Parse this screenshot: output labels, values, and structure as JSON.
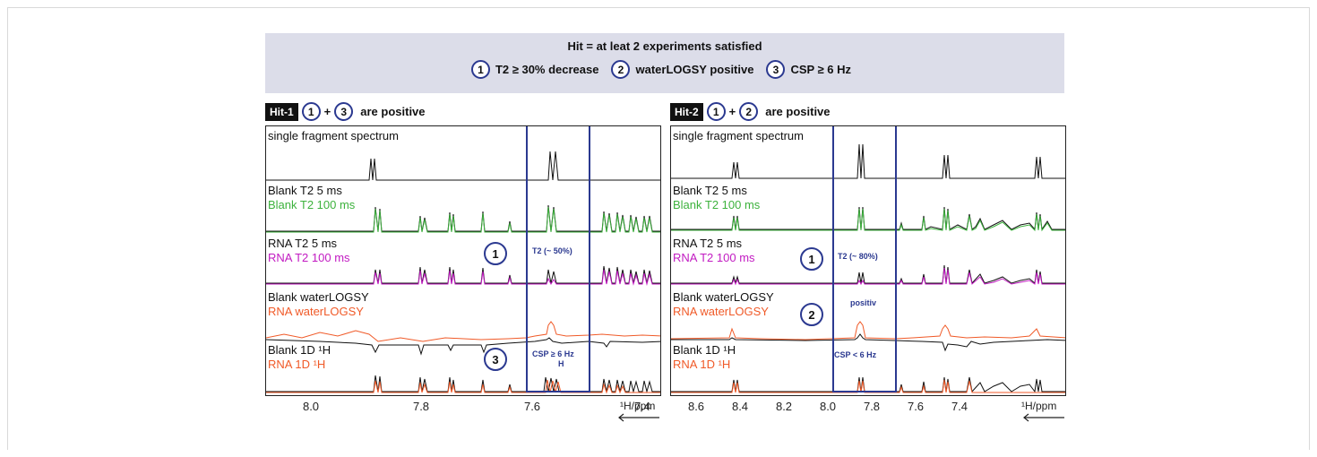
{
  "banner": {
    "title": "Hit = at leat 2 experiments satisfied",
    "criteria": [
      {
        "num": "1",
        "label": "T2 ≥ 30% decrease"
      },
      {
        "num": "2",
        "label": "waterLOGSY positive"
      },
      {
        "num": "3",
        "label": "CSP ≥ 6 Hz"
      }
    ]
  },
  "hit1": {
    "badge": "Hit-1",
    "n1": "1",
    "plus": "+",
    "n2": "3",
    "suffix": "are positive",
    "labels": {
      "single": "single fragment spectrum",
      "blank_t2_5": "Blank T2 5 ms",
      "blank_t2_100": "Blank T2 100 ms",
      "rna_t2_5": "RNA T2 5 ms",
      "rna_t2_100": "RNA T2 100 ms",
      "blank_wl": "Blank waterLOGSY",
      "rna_wl": "RNA waterLOGSY",
      "blank_1d": "Blank 1D ¹H",
      "rna_1d": "RNA 1D ¹H"
    },
    "annot_t2": "T2 (~ 50%)",
    "annot_csp": "CSP ≥ 6 Hz",
    "annot_h": "H",
    "circle_t2": "1",
    "circle_csp": "3",
    "ticks": [
      "8.0",
      "7.8",
      "7.6",
      "7.4"
    ],
    "unit": "¹H/ppm"
  },
  "hit2": {
    "badge": "Hit-2",
    "n1": "1",
    "plus": "+",
    "n2": "2",
    "suffix": "are positive",
    "labels": {
      "single": "single fragment spectrum",
      "blank_t2_5": "Blank T2 5 ms",
      "blank_t2_100": "Blank T2 100 ms",
      "rna_t2_5": "RNA T2 5 ms",
      "rna_t2_100": "RNA T2 100 ms",
      "blank_wl": "Blank waterLOGSY",
      "rna_wl": "RNA waterLOGSY",
      "blank_1d": "Blank 1D ¹H",
      "rna_1d": "RNA 1D ¹H"
    },
    "annot_t2": "T2 (~ 80%)",
    "annot_wl": "positiv",
    "annot_csp": "CSP < 6 Hz",
    "circle_t2": "1",
    "circle_wl": "2",
    "ticks": [
      "8.6",
      "8.4",
      "8.2",
      "8.0",
      "7.8",
      "7.6",
      "7.4"
    ],
    "unit": "¹H/ppm"
  },
  "colors": {
    "box": "#2b3990",
    "blank_t2_100": "#3db23d",
    "rna_t2_100": "#c21bc2",
    "rna_red": "#f05a28"
  }
}
